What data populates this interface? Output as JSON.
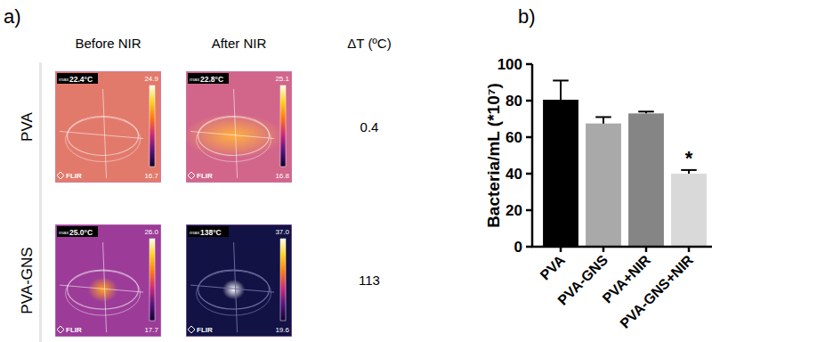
{
  "thermal": {
    "label": "a)",
    "columns": [
      "Before NIR",
      "After NIR",
      "ΔT (ºC)"
    ],
    "max_prefix": "max",
    "logo": "FLIR",
    "rows": [
      {
        "label": "PVA",
        "delta_t": "0.4",
        "images": [
          {
            "max": "22.4°C",
            "scale_max": "24.9",
            "scale_min": "16.7"
          },
          {
            "max": "22.8°C",
            "scale_max": "25.1",
            "scale_min": "16.8"
          }
        ]
      },
      {
        "label": "PVA-GNS",
        "delta_t": "113",
        "images": [
          {
            "max": "25.0°C",
            "scale_max": "26.0",
            "scale_min": "17.7"
          },
          {
            "max": "138°C",
            "scale_max": "37.0",
            "scale_min": "19.6"
          }
        ]
      }
    ]
  },
  "chart_data": {
    "type": "bar",
    "label": "b)",
    "y_label": "Bacteria/mL (*10⁷)",
    "categories": [
      "PVA",
      "PVA-GNS",
      "PVA+NIR",
      "PVA-GNS+NIR"
    ],
    "values": [
      80.5,
      67.5,
      73,
      40
    ],
    "errors": [
      10.5,
      3.5,
      1,
      2
    ],
    "colors": [
      "#000000",
      "#a9a9a9",
      "#858585",
      "#d9d9d9"
    ],
    "ylim": [
      0,
      100
    ],
    "yticks": [
      0,
      20,
      40,
      60,
      80,
      100
    ],
    "grid": false,
    "annotations": [
      {
        "text": "*",
        "x": "PVA-GNS+NIR"
      }
    ]
  }
}
